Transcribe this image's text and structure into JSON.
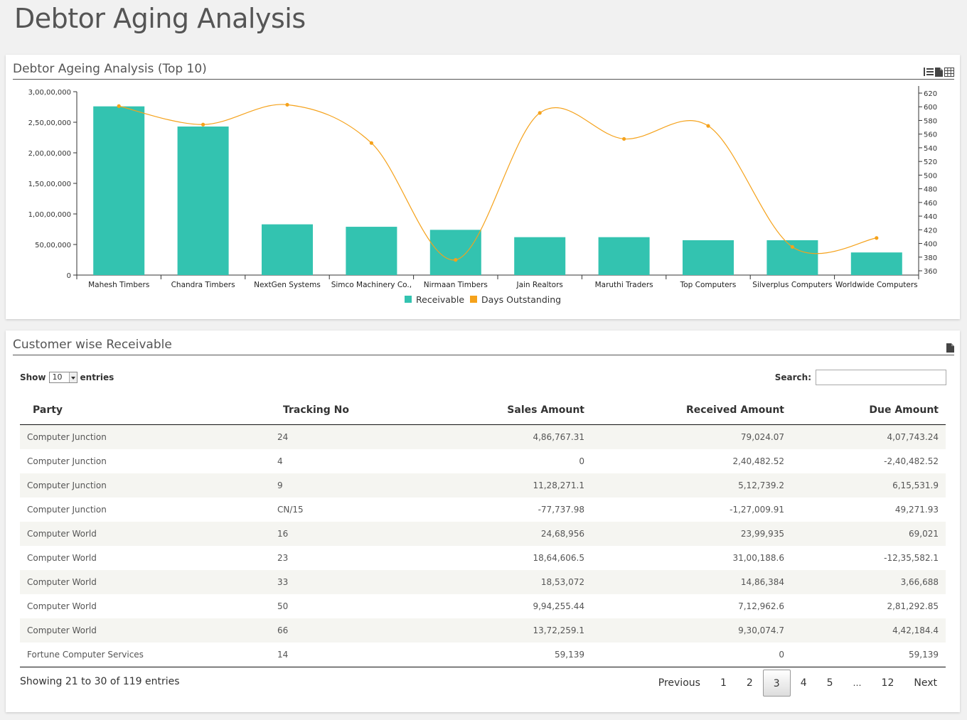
{
  "page_title": "Debtor Aging Analysis",
  "chart_panel": {
    "title": "Debtor Ageing Analysis (Top 10)",
    "icons": [
      "list-icon",
      "document-icon",
      "grid-icon"
    ]
  },
  "chart_data": {
    "type": "bar",
    "categories": [
      "Mahesh Timbers",
      "Chandra Timbers",
      "NextGen Systems",
      "Simco Machinery Co.,",
      "Nirmaan Timbers",
      "Jain Realtors",
      "Maruthi Traders",
      "Top Computers",
      "Silverplus Computers",
      "Worldwide Computers"
    ],
    "series": [
      {
        "name": "Receivable",
        "type": "bar",
        "axis": "left",
        "color": "#33c3b0",
        "values": [
          27600000,
          24300000,
          8300000,
          7900000,
          7400000,
          6200000,
          6200000,
          5700000,
          5700000,
          3700000
        ]
      },
      {
        "name": "Days Outstanding",
        "type": "line",
        "axis": "right",
        "color": "#f5a21b",
        "values": [
          601,
          574,
          603,
          547,
          376,
          591,
          553,
          572,
          395,
          408
        ]
      }
    ],
    "y_left": {
      "min": 0,
      "max": 30000000,
      "ticks": [
        0,
        5000000,
        10000000,
        15000000,
        20000000,
        25000000,
        30000000
      ],
      "tick_labels": [
        "0",
        "50,00,000",
        "1,00,00,000",
        "1,50,00,000",
        "2,00,00,000",
        "2,50,00,000",
        "3,00,00,000"
      ]
    },
    "y_right": {
      "min": 360,
      "max": 620,
      "ticks": [
        360,
        380,
        400,
        420,
        440,
        460,
        480,
        500,
        520,
        540,
        560,
        580,
        600,
        620
      ]
    },
    "legend_position": "bottom-center",
    "grid": false
  },
  "table_panel": {
    "title": "Customer wise Receivable",
    "icons": [
      "document-icon"
    ],
    "show_label": "Show",
    "entries_label": "entries",
    "page_length": "10",
    "search_label": "Search:",
    "search_value": "",
    "columns": [
      {
        "label": "Party",
        "align": "left"
      },
      {
        "label": "Tracking No",
        "align": "left"
      },
      {
        "label": "Sales Amount",
        "align": "right"
      },
      {
        "label": "Received Amount",
        "align": "right"
      },
      {
        "label": "Due Amount",
        "align": "right"
      }
    ],
    "rows": [
      [
        "Computer Junction",
        "24",
        "4,86,767.31",
        "79,024.07",
        "4,07,743.24"
      ],
      [
        "Computer Junction",
        "4",
        "0",
        "2,40,482.52",
        "-2,40,482.52"
      ],
      [
        "Computer Junction",
        "9",
        "11,28,271.1",
        "5,12,739.2",
        "6,15,531.9"
      ],
      [
        "Computer Junction",
        "CN/15",
        "-77,737.98",
        "-1,27,009.91",
        "49,271.93"
      ],
      [
        "Computer World",
        "16",
        "24,68,956",
        "23,99,935",
        "69,021"
      ],
      [
        "Computer World",
        "23",
        "18,64,606.5",
        "31,00,188.6",
        "-12,35,582.1"
      ],
      [
        "Computer World",
        "33",
        "18,53,072",
        "14,86,384",
        "3,66,688"
      ],
      [
        "Computer World",
        "50",
        "9,94,255.44",
        "7,12,962.6",
        "2,81,292.85"
      ],
      [
        "Computer World",
        "66",
        "13,72,259.1",
        "9,30,074.7",
        "4,42,184.4"
      ],
      [
        "Fortune Computer Services",
        "14",
        "59,139",
        "0",
        "59,139"
      ]
    ],
    "info": "Showing 21 to 30 of 119 entries",
    "pagination": {
      "previous": "Previous",
      "next": "Next",
      "pages": [
        "1",
        "2",
        "3",
        "4",
        "5",
        "…",
        "12"
      ],
      "current": "3"
    }
  }
}
